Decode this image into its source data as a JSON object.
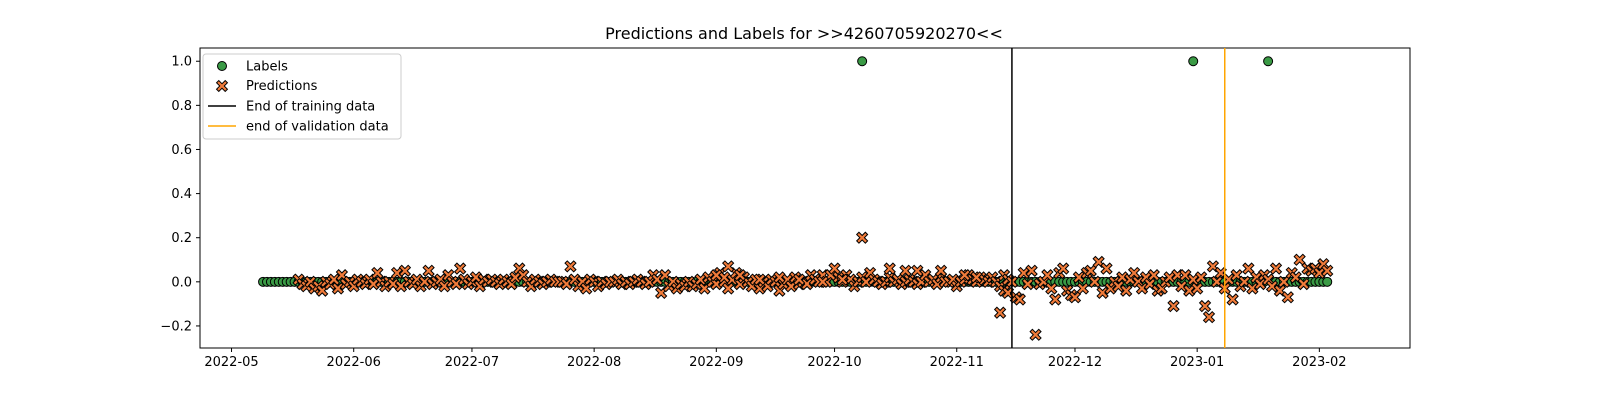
{
  "chart_data": {
    "type": "scatter",
    "title": "Predictions and Labels for >>4260705920270<<",
    "xlabel": "",
    "ylabel": "",
    "x_axis_type": "date",
    "xlim": [
      "2022-04-23",
      "2023-02-24"
    ],
    "ylim": [
      -0.3,
      1.06
    ],
    "x_ticks": [
      "2022-05",
      "2022-06",
      "2022-07",
      "2022-08",
      "2022-09",
      "2022-10",
      "2022-11",
      "2022-12",
      "2023-01",
      "2023-02"
    ],
    "x_tick_dates": [
      "2022-05-01",
      "2022-06-01",
      "2022-07-01",
      "2022-08-01",
      "2022-09-01",
      "2022-10-01",
      "2022-11-01",
      "2022-12-01",
      "2023-01-01",
      "2023-02-01"
    ],
    "y_ticks": [
      -0.2,
      0.0,
      0.2,
      0.4,
      0.6,
      0.8,
      1.0
    ],
    "y_tick_labels": [
      "−0.2",
      "0.0",
      "0.2",
      "0.4",
      "0.6",
      "0.8",
      "1.0"
    ],
    "grid": false,
    "legend_position": "top-left",
    "legend": [
      {
        "label": "Labels",
        "kind": "marker-circle",
        "color": "#3a9a45"
      },
      {
        "label": "Predictions",
        "kind": "marker-x",
        "color": "#f07b3a"
      },
      {
        "label": "End of training data",
        "kind": "line",
        "color": "#000000"
      },
      {
        "label": "end of validation data",
        "kind": "line",
        "color": "#ffa500"
      }
    ],
    "vlines": [
      {
        "name": "End of training data",
        "x": "2022-11-15",
        "color": "#000000"
      },
      {
        "name": "end of validation data",
        "x": "2023-01-08",
        "color": "#ffa500"
      }
    ],
    "labels": {
      "start": "2022-05-09",
      "end": "2023-02-03",
      "default_value": 0,
      "ones": [
        "2022-10-08",
        "2022-12-31",
        "2023-01-19"
      ],
      "color": "#3a9a45"
    },
    "predictions": {
      "color": "#f07b3a",
      "points": [
        [
          "2022-05-18",
          0.01
        ],
        [
          "2022-05-19",
          -0.01
        ],
        [
          "2022-05-20",
          -0.02
        ],
        [
          "2022-05-21",
          0.0
        ],
        [
          "2022-05-22",
          -0.03
        ],
        [
          "2022-05-23",
          -0.02
        ],
        [
          "2022-05-24",
          -0.04
        ],
        [
          "2022-05-25",
          0.0
        ],
        [
          "2022-05-26",
          -0.01
        ],
        [
          "2022-05-27",
          0.01
        ],
        [
          "2022-05-28",
          -0.03
        ],
        [
          "2022-05-29",
          0.03
        ],
        [
          "2022-05-30",
          -0.01
        ],
        [
          "2022-05-31",
          0.0
        ],
        [
          "2022-06-01",
          -0.02
        ],
        [
          "2022-06-02",
          0.01
        ],
        [
          "2022-06-03",
          0.0
        ],
        [
          "2022-06-04",
          -0.01
        ],
        [
          "2022-06-05",
          0.01
        ],
        [
          "2022-06-06",
          -0.01
        ],
        [
          "2022-06-07",
          0.04
        ],
        [
          "2022-06-08",
          0.0
        ],
        [
          "2022-06-09",
          -0.02
        ],
        [
          "2022-06-10",
          0.0
        ],
        [
          "2022-06-11",
          -0.01
        ],
        [
          "2022-06-12",
          0.04
        ],
        [
          "2022-06-13",
          -0.02
        ],
        [
          "2022-06-14",
          0.05
        ],
        [
          "2022-06-15",
          0.0
        ],
        [
          "2022-06-16",
          -0.01
        ],
        [
          "2022-06-17",
          0.01
        ],
        [
          "2022-06-18",
          -0.02
        ],
        [
          "2022-06-19",
          0.0
        ],
        [
          "2022-06-20",
          0.05
        ],
        [
          "2022-06-21",
          -0.01
        ],
        [
          "2022-06-22",
          0.0
        ],
        [
          "2022-06-23",
          0.01
        ],
        [
          "2022-06-24",
          -0.02
        ],
        [
          "2022-06-25",
          0.03
        ],
        [
          "2022-06-26",
          0.0
        ],
        [
          "2022-06-27",
          -0.01
        ],
        [
          "2022-06-28",
          0.06
        ],
        [
          "2022-06-29",
          0.01
        ],
        [
          "2022-06-30",
          -0.01
        ],
        [
          "2022-07-01",
          0.0
        ],
        [
          "2022-07-02",
          0.02
        ],
        [
          "2022-07-03",
          -0.02
        ],
        [
          "2022-07-04",
          0.01
        ],
        [
          "2022-07-05",
          0.0
        ],
        [
          "2022-07-06",
          0.01
        ],
        [
          "2022-07-07",
          0.0
        ],
        [
          "2022-07-08",
          -0.01
        ],
        [
          "2022-07-09",
          0.01
        ],
        [
          "2022-07-10",
          0.0
        ],
        [
          "2022-07-11",
          -0.01
        ],
        [
          "2022-07-12",
          0.02
        ],
        [
          "2022-07-13",
          0.06
        ],
        [
          "2022-07-14",
          0.03
        ],
        [
          "2022-07-15",
          0.0
        ],
        [
          "2022-07-16",
          -0.02
        ],
        [
          "2022-07-17",
          0.01
        ],
        [
          "2022-07-18",
          0.0
        ],
        [
          "2022-07-19",
          -0.01
        ],
        [
          "2022-07-20",
          0.0
        ],
        [
          "2022-07-21",
          0.01
        ],
        [
          "2022-07-22",
          0.0
        ],
        [
          "2022-07-23",
          0.0
        ],
        [
          "2022-07-24",
          0.0
        ],
        [
          "2022-07-25",
          -0.01
        ],
        [
          "2022-07-26",
          0.07
        ],
        [
          "2022-07-27",
          0.01
        ],
        [
          "2022-07-28",
          -0.02
        ],
        [
          "2022-07-29",
          0.0
        ],
        [
          "2022-07-30",
          -0.03
        ],
        [
          "2022-07-31",
          0.01
        ],
        [
          "2022-08-01",
          0.0
        ],
        [
          "2022-08-02",
          -0.02
        ],
        [
          "2022-08-03",
          0.0
        ],
        [
          "2022-08-04",
          -0.01
        ],
        [
          "2022-08-05",
          0.0
        ],
        [
          "2022-08-06",
          0.0
        ],
        [
          "2022-08-07",
          0.01
        ],
        [
          "2022-08-08",
          -0.01
        ],
        [
          "2022-08-09",
          0.0
        ],
        [
          "2022-08-10",
          -0.01
        ],
        [
          "2022-08-11",
          0.0
        ],
        [
          "2022-08-12",
          0.01
        ],
        [
          "2022-08-13",
          0.0
        ],
        [
          "2022-08-14",
          -0.01
        ],
        [
          "2022-08-15",
          0.0
        ],
        [
          "2022-08-16",
          0.03
        ],
        [
          "2022-08-17",
          0.01
        ],
        [
          "2022-08-18",
          -0.05
        ],
        [
          "2022-08-19",
          0.03
        ],
        [
          "2022-08-20",
          -0.02
        ],
        [
          "2022-08-21",
          0.0
        ],
        [
          "2022-08-22",
          -0.03
        ],
        [
          "2022-08-23",
          -0.01
        ],
        [
          "2022-08-24",
          -0.02
        ],
        [
          "2022-08-25",
          0.0
        ],
        [
          "2022-08-26",
          -0.02
        ],
        [
          "2022-08-27",
          -0.01
        ],
        [
          "2022-08-28",
          0.01
        ],
        [
          "2022-08-29",
          -0.03
        ],
        [
          "2022-08-30",
          0.02
        ],
        [
          "2022-08-31",
          0.0
        ],
        [
          "2022-09-01",
          -0.01
        ],
        [
          "2022-09-02",
          0.04
        ],
        [
          "2022-09-03",
          0.0
        ],
        [
          "2022-09-04",
          -0.03
        ],
        [
          "2022-09-05",
          0.01
        ],
        [
          "2022-09-06",
          0.04
        ],
        [
          "2022-09-07",
          -0.01
        ],
        [
          "2022-09-08",
          0.02
        ],
        [
          "2022-09-09",
          0.0
        ],
        [
          "2022-09-10",
          -0.02
        ],
        [
          "2022-09-11",
          0.01
        ],
        [
          "2022-09-12",
          -0.03
        ],
        [
          "2022-09-13",
          0.0
        ],
        [
          "2022-09-14",
          -0.02
        ],
        [
          "2022-09-15",
          0.01
        ],
        [
          "2022-09-16",
          0.0
        ],
        [
          "2022-09-17",
          -0.04
        ],
        [
          "2022-09-18",
          -0.01
        ],
        [
          "2022-09-19",
          0.01
        ],
        [
          "2022-09-20",
          -0.02
        ],
        [
          "2022-09-21",
          0.02
        ],
        [
          "2022-09-22",
          -0.01
        ],
        [
          "2022-09-23",
          0.0
        ],
        [
          "2022-09-24",
          -0.01
        ],
        [
          "2022-09-25",
          0.03
        ],
        [
          "2022-09-26",
          0.01
        ],
        [
          "2022-09-27",
          0.0
        ],
        [
          "2022-09-28",
          0.03
        ],
        [
          "2022-09-29",
          0.0
        ],
        [
          "2022-09-30",
          0.03
        ],
        [
          "2022-10-01",
          0.06
        ],
        [
          "2022-10-02",
          0.02
        ],
        [
          "2022-10-03",
          0.0
        ],
        [
          "2022-10-04",
          0.03
        ],
        [
          "2022-10-05",
          0.01
        ],
        [
          "2022-10-06",
          -0.02
        ],
        [
          "2022-10-07",
          0.0
        ],
        [
          "2022-10-08",
          0.02
        ],
        [
          "2022-10-09",
          0.0
        ],
        [
          "2022-10-10",
          0.04
        ],
        [
          "2022-10-11",
          0.01
        ],
        [
          "2022-10-12",
          0.0
        ],
        [
          "2022-10-13",
          -0.01
        ],
        [
          "2022-10-14",
          0.0
        ],
        [
          "2022-10-15",
          0.02
        ],
        [
          "2022-10-16",
          0.0
        ],
        [
          "2022-10-17",
          0.01
        ],
        [
          "2022-10-18",
          -0.01
        ],
        [
          "2022-10-19",
          0.0
        ],
        [
          "2022-10-20",
          0.01
        ],
        [
          "2022-10-21",
          0.0
        ],
        [
          "2022-10-22",
          -0.01
        ],
        [
          "2022-10-23",
          0.0
        ],
        [
          "2022-10-24",
          0.03
        ],
        [
          "2022-10-25",
          0.0
        ],
        [
          "2022-10-26",
          0.01
        ],
        [
          "2022-10-27",
          -0.01
        ],
        [
          "2022-10-28",
          0.02
        ],
        [
          "2022-10-29",
          0.0
        ],
        [
          "2022-10-30",
          0.0
        ],
        [
          "2022-10-31",
          0.01
        ],
        [
          "2022-11-01",
          -0.02
        ],
        [
          "2022-11-02",
          0.0
        ],
        [
          "2022-11-03",
          0.01
        ],
        [
          "2022-11-04",
          0.03
        ],
        [
          "2022-11-05",
          0.01
        ],
        [
          "2022-11-06",
          0.0
        ],
        [
          "2022-11-07",
          0.02
        ],
        [
          "2022-11-08",
          0.01
        ],
        [
          "2022-11-09",
          0.0
        ],
        [
          "2022-11-10",
          0.02
        ],
        [
          "2022-11-11",
          0.0
        ],
        [
          "2022-11-12",
          -0.02
        ],
        [
          "2022-11-13",
          0.03
        ],
        [
          "2022-11-14",
          0.01
        ],
        [
          "2022-11-15",
          0.0
        ],
        [
          "2022-10-08",
          0.2
        ],
        [
          "2022-10-03",
          0.01
        ],
        [
          "2022-09-28",
          0.0
        ],
        [
          "2022-09-22",
          0.01
        ],
        [
          "2022-09-17",
          0.02
        ],
        [
          "2022-09-12",
          0.01
        ],
        [
          "2022-09-07",
          0.03
        ],
        [
          "2022-09-03",
          0.02
        ],
        [
          "2022-09-01",
          0.03
        ],
        [
          "2022-09-04",
          0.07
        ],
        [
          "2022-10-15",
          0.06
        ],
        [
          "2022-10-19",
          0.05
        ],
        [
          "2022-10-22",
          0.05
        ],
        [
          "2022-10-28",
          0.05
        ],
        [
          "2022-11-03",
          0.03
        ],
        [
          "2022-11-06",
          0.02
        ],
        [
          "2022-11-12",
          -0.14
        ],
        [
          "2022-11-13",
          -0.04
        ],
        [
          "2022-11-14",
          -0.05
        ],
        [
          "2022-11-16",
          -0.07
        ],
        [
          "2022-11-17",
          -0.08
        ],
        [
          "2022-11-18",
          0.04
        ],
        [
          "2022-11-19",
          -0.01
        ],
        [
          "2022-11-20",
          0.05
        ],
        [
          "2022-11-21",
          -0.24
        ],
        [
          "2022-11-22",
          -0.01
        ],
        [
          "2022-11-23",
          0.0
        ],
        [
          "2022-11-24",
          0.03
        ],
        [
          "2022-11-25",
          -0.03
        ],
        [
          "2022-11-26",
          -0.08
        ],
        [
          "2022-11-27",
          0.04
        ],
        [
          "2022-11-28",
          0.06
        ],
        [
          "2022-11-29",
          -0.04
        ],
        [
          "2022-11-30",
          -0.06
        ],
        [
          "2022-12-01",
          -0.07
        ],
        [
          "2022-12-02",
          0.02
        ],
        [
          "2022-12-03",
          -0.03
        ],
        [
          "2022-12-04",
          0.04
        ],
        [
          "2022-12-05",
          0.05
        ],
        [
          "2022-12-06",
          0.0
        ],
        [
          "2022-12-07",
          0.09
        ],
        [
          "2022-12-08",
          -0.05
        ],
        [
          "2022-12-09",
          0.06
        ],
        [
          "2022-12-10",
          -0.03
        ],
        [
          "2022-12-11",
          0.0
        ],
        [
          "2022-12-12",
          -0.02
        ],
        [
          "2022-12-13",
          0.02
        ],
        [
          "2022-12-14",
          -0.04
        ],
        [
          "2022-12-15",
          0.01
        ],
        [
          "2022-12-16",
          0.04
        ],
        [
          "2022-12-17",
          0.0
        ],
        [
          "2022-12-18",
          -0.03
        ],
        [
          "2022-12-19",
          0.02
        ],
        [
          "2022-12-20",
          -0.01
        ],
        [
          "2022-12-21",
          0.03
        ],
        [
          "2022-12-22",
          -0.04
        ],
        [
          "2022-12-23",
          -0.03
        ],
        [
          "2022-12-24",
          0.0
        ],
        [
          "2022-12-25",
          0.02
        ],
        [
          "2022-12-26",
          -0.11
        ],
        [
          "2022-12-27",
          0.03
        ],
        [
          "2022-12-28",
          -0.02
        ],
        [
          "2022-12-29",
          0.03
        ],
        [
          "2022-12-30",
          -0.04
        ],
        [
          "2022-12-31",
          0.01
        ],
        [
          "2023-01-01",
          -0.03
        ],
        [
          "2023-01-02",
          0.02
        ],
        [
          "2023-01-03",
          -0.11
        ],
        [
          "2023-01-04",
          -0.16
        ],
        [
          "2023-01-05",
          0.07
        ],
        [
          "2023-01-06",
          0.0
        ],
        [
          "2023-01-07",
          0.04
        ],
        [
          "2023-01-08",
          -0.03
        ],
        [
          "2023-01-09",
          0.01
        ],
        [
          "2023-01-10",
          -0.08
        ],
        [
          "2023-01-11",
          0.03
        ],
        [
          "2023-01-12",
          -0.02
        ],
        [
          "2023-01-13",
          0.0
        ],
        [
          "2023-01-14",
          0.06
        ],
        [
          "2023-01-15",
          -0.03
        ],
        [
          "2023-01-16",
          0.02
        ],
        [
          "2023-01-17",
          -0.01
        ],
        [
          "2023-01-18",
          0.03
        ],
        [
          "2023-01-19",
          0.01
        ],
        [
          "2023-01-20",
          -0.02
        ],
        [
          "2023-01-21",
          0.06
        ],
        [
          "2023-01-22",
          -0.04
        ],
        [
          "2023-01-23",
          0.0
        ],
        [
          "2023-01-24",
          -0.07
        ],
        [
          "2023-01-25",
          0.04
        ],
        [
          "2023-01-26",
          0.02
        ],
        [
          "2023-01-27",
          0.1
        ],
        [
          "2023-01-28",
          -0.01
        ],
        [
          "2023-01-29",
          0.06
        ],
        [
          "2023-01-30",
          0.05
        ],
        [
          "2023-01-31",
          0.06
        ],
        [
          "2023-02-01",
          0.04
        ],
        [
          "2023-02-02",
          0.08
        ],
        [
          "2023-02-03",
          0.05
        ]
      ]
    }
  }
}
